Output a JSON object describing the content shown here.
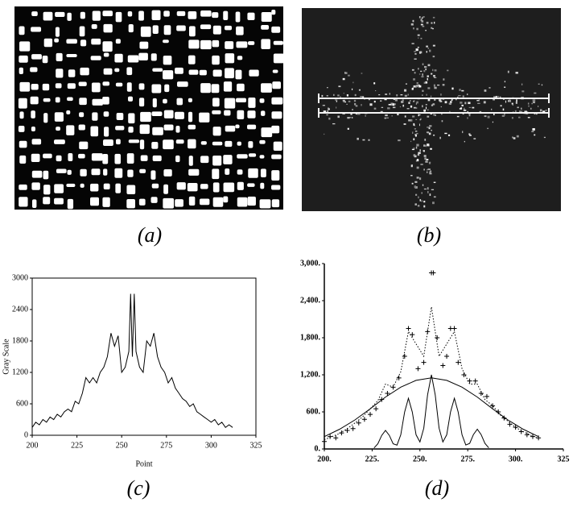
{
  "panels": [
    "(a)",
    "(b)",
    "(c)",
    "(d)"
  ],
  "chart_data": [
    {
      "type": "line",
      "xlabel": "Point",
      "ylabel": "Gray Scale",
      "x": [
        200,
        202,
        204,
        206,
        208,
        210,
        212,
        214,
        216,
        218,
        220,
        222,
        224,
        226,
        228,
        230,
        232,
        234,
        236,
        238,
        240,
        242,
        244,
        246,
        248,
        250,
        252,
        254,
        255,
        256,
        257,
        258,
        260,
        262,
        264,
        266,
        268,
        270,
        272,
        274,
        276,
        278,
        280,
        282,
        284,
        286,
        288,
        290,
        292,
        294,
        296,
        298,
        300,
        302,
        304,
        306,
        308,
        310,
        312
      ],
      "values": [
        150,
        250,
        200,
        300,
        250,
        350,
        300,
        400,
        350,
        450,
        500,
        450,
        650,
        600,
        800,
        1100,
        1000,
        1100,
        1000,
        1200,
        1300,
        1500,
        1950,
        1700,
        1900,
        1200,
        1300,
        1600,
        2700,
        1500,
        2700,
        1600,
        1300,
        1200,
        1800,
        1700,
        1950,
        1500,
        1300,
        1200,
        1000,
        1100,
        900,
        800,
        700,
        650,
        550,
        600,
        450,
        400,
        350,
        300,
        250,
        300,
        200,
        250,
        150,
        200,
        150
      ],
      "color": "#000000",
      "xlim": [
        200,
        325
      ],
      "xticks": [
        200,
        225,
        250,
        275,
        300,
        325
      ],
      "ylim": [
        0,
        3000
      ],
      "yticks": [
        0,
        600,
        1200,
        1800,
        2400,
        3000
      ]
    },
    {
      "type": "line",
      "series": [
        {
          "style": "markers",
          "color": "#000000",
          "x": [
            200,
            203,
            206,
            209,
            212,
            215,
            218,
            221,
            224,
            227,
            230,
            233,
            236,
            239,
            242,
            244,
            246,
            249,
            252,
            254,
            256,
            257,
            259,
            262,
            264,
            266,
            268,
            270,
            273,
            276,
            279,
            282,
            285,
            288,
            291,
            294,
            297,
            300,
            303,
            306,
            309,
            312
          ],
          "values": [
            120,
            200,
            180,
            260,
            300,
            330,
            420,
            480,
            560,
            650,
            800,
            900,
            1000,
            1150,
            1500,
            1950,
            1850,
            1300,
            1400,
            1900,
            2850,
            2850,
            1800,
            1350,
            1500,
            1950,
            1950,
            1400,
            1200,
            1100,
            1100,
            900,
            850,
            700,
            600,
            500,
            400,
            350,
            280,
            230,
            200,
            180
          ]
        },
        {
          "style": "dotted",
          "color": "#000000",
          "x": [
            200,
            204,
            208,
            212,
            216,
            220,
            224,
            228,
            232,
            236,
            240,
            244,
            248,
            252,
            254,
            256,
            258,
            260,
            264,
            268,
            272,
            276,
            280,
            284,
            288,
            292,
            296,
            300,
            304,
            308,
            312
          ],
          "values": [
            150,
            200,
            250,
            330,
            420,
            520,
            650,
            780,
            1050,
            1000,
            1250,
            1900,
            1700,
            1500,
            1900,
            2300,
            1900,
            1500,
            1700,
            1900,
            1300,
            1050,
            1050,
            800,
            700,
            550,
            450,
            350,
            280,
            220,
            170
          ]
        },
        {
          "style": "solid",
          "color": "#000000",
          "x": [
            200,
            208,
            216,
            224,
            232,
            240,
            248,
            256,
            264,
            272,
            280,
            288,
            296,
            304,
            312
          ],
          "values": [
            200,
            320,
            470,
            650,
            840,
            1000,
            1110,
            1150,
            1110,
            1000,
            840,
            650,
            470,
            320,
            200
          ]
        },
        {
          "style": "solid",
          "color": "#000000",
          "x": [
            226,
            228,
            230,
            232,
            234,
            236,
            238,
            240,
            242,
            244,
            246,
            248,
            250,
            252,
            254,
            256,
            258,
            260,
            262,
            264,
            266,
            268,
            270,
            272,
            274,
            276,
            278,
            280,
            282,
            284,
            286
          ],
          "values": [
            17,
            84,
            219,
            300,
            219,
            84,
            63,
            230,
            599,
            820,
            599,
            230,
            113,
            336,
            876,
            1200,
            876,
            336,
            113,
            230,
            599,
            820,
            599,
            230,
            64,
            90,
            234,
            320,
            234,
            90,
            18
          ]
        }
      ],
      "xlim": [
        200,
        325
      ],
      "xticks": [
        {
          "value": 200,
          "label": "200."
        },
        {
          "value": 225,
          "label": "225."
        },
        {
          "value": 250,
          "label": "250."
        },
        {
          "value": 275,
          "label": "275."
        },
        {
          "value": 300,
          "label": "300."
        },
        {
          "value": 325,
          "label": "325"
        }
      ],
      "ylim": [
        0,
        3000
      ],
      "yticks": [
        {
          "value": 0,
          "label": "0."
        },
        {
          "value": 600,
          "label": "600."
        },
        {
          "value": 1200,
          "label": "1,200."
        },
        {
          "value": 1800,
          "label": "1,800."
        },
        {
          "value": 2400,
          "label": "2,400."
        },
        {
          "value": 3000,
          "label": "3,000."
        }
      ]
    }
  ]
}
